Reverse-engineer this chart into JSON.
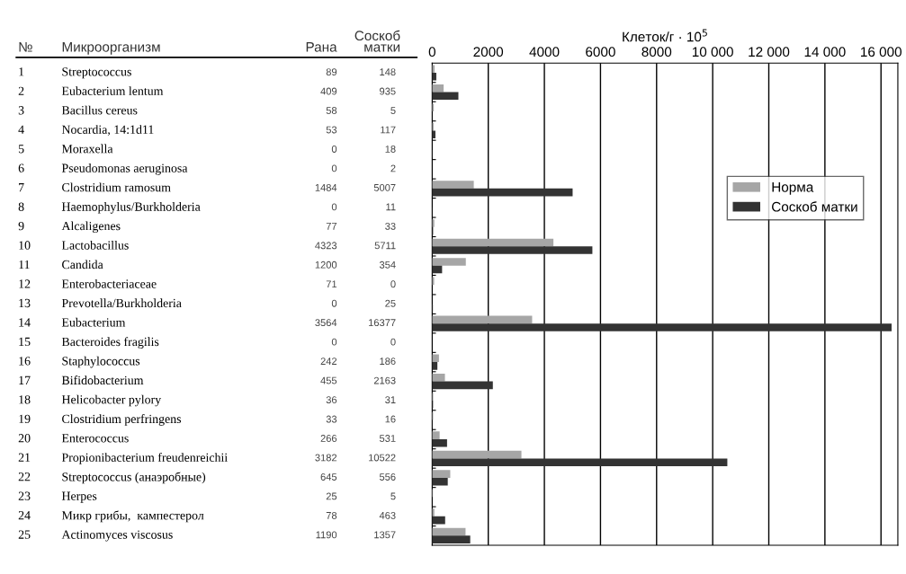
{
  "chart_data": {
    "type": "bar",
    "orientation": "horizontal",
    "xlabel": "Клеток/г · 10$^{5}$",
    "categories": [
      "1 Streptococcus",
      "2 Eubacterium lentum",
      "3 Bacillus cereus",
      "4 Nocardia, 14:1d11",
      "5 Moraxella",
      "6 Pseudomonas aeruginosa",
      "7 Clostridium ramosum",
      "8 Haemophylus/Burkholderia",
      "9 Alcaligenes",
      "10 Lactobacillus",
      "11 Candida",
      "12 Enterobacteriaceae",
      "13 Prevotella/Burkholderia",
      "14 Eubacterium",
      "15 Bacteroides fragilis",
      "16 Staphylococcus",
      "17 Bifidobacterium",
      "18 Helicobacter pylory",
      "19 Clostridium perfringens",
      "20 Enterococcus",
      "21 Propionibacterium freudenreichii",
      "22 Streptococcus (анаэробные)",
      "23 Herpes",
      "24 Микр грибы,  кампестерол",
      "25 Actinomyces viscosus"
    ],
    "series": [
      {
        "name": "Норма",
        "color": "#a6a6a6",
        "values": [
          89,
          409,
          58,
          53,
          0,
          0,
          1484,
          0,
          77,
          4323,
          1200,
          71,
          0,
          3564,
          0,
          242,
          455,
          36,
          33,
          266,
          3182,
          645,
          25,
          78,
          1190
        ],
        "value_labels": [
          "89",
          "409",
          "58",
          "53",
          "0",
          "0",
          "1484",
          "0",
          "77",
          "4323",
          "1200",
          "71",
          "0",
          "3564",
          "0",
          "242",
          "455",
          "36",
          "33",
          "266",
          "3182",
          "645",
          "25",
          "78",
          "1190"
        ]
      },
      {
        "name": "Соскоб матки",
        "color": "#333333",
        "values": [
          148,
          935,
          5,
          117,
          18,
          2,
          5007,
          11,
          33,
          5711,
          354,
          0,
          25,
          16377,
          0,
          186,
          2163,
          31,
          16,
          531,
          10522,
          556,
          5,
          463,
          1357
        ],
        "value_labels": [
          "148",
          "935",
          "5",
          "117",
          "18",
          "2",
          "5007",
          "11",
          "33",
          "5711",
          "354",
          "0",
          "25",
          "16377",
          "0",
          "186",
          "2163",
          "31",
          "16",
          "531",
          "10522",
          "556",
          "5",
          "463",
          "1357"
        ]
      }
    ],
    "annotations": [
      "№",
      "Микроорганизм",
      "Рана",
      "Соскоб\nматки"
    ],
    "xlim": [
      0,
      16600
    ],
    "xticks": [
      0,
      2000,
      4000,
      6000,
      8000,
      {
        "value": 10000,
        "label": "10 000"
      },
      {
        "value": 12000,
        "label": "12 000"
      },
      {
        "value": 14000,
        "label": "14 000"
      },
      {
        "value": 16000,
        "label": "16 000"
      }
    ],
    "grid": "x",
    "legend": "right",
    "tick_labels": "x"
  }
}
